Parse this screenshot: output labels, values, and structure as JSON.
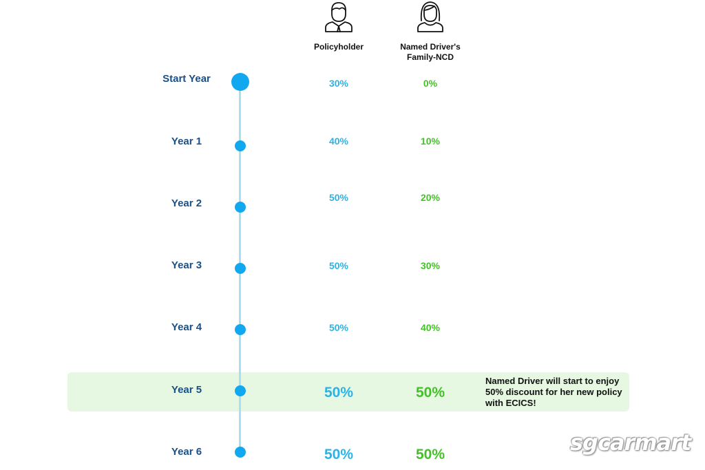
{
  "columns": {
    "policyholder": {
      "label": "Policyholder",
      "icon": "man-avatar-icon"
    },
    "named_driver": {
      "label_line1": "Named Driver's",
      "label_line2": "Family-NCD",
      "icon": "woman-avatar-icon"
    }
  },
  "rows": [
    {
      "year": "Start Year",
      "policyholder": "30%",
      "named_driver": "0%"
    },
    {
      "year": "Year 1",
      "policyholder": "40%",
      "named_driver": "10%"
    },
    {
      "year": "Year 2",
      "policyholder": "50%",
      "named_driver": "20%"
    },
    {
      "year": "Year 3",
      "policyholder": "50%",
      "named_driver": "30%"
    },
    {
      "year": "Year 4",
      "policyholder": "50%",
      "named_driver": "40%"
    },
    {
      "year": "Year 5",
      "policyholder": "50%",
      "named_driver": "50%"
    },
    {
      "year": "Year 6",
      "policyholder": "50%",
      "named_driver": "50%"
    }
  ],
  "highlight_note": "Named Driver will start to enjoy 50% discount for her new policy with ECICS!",
  "watermark": "sgcarmart",
  "colors": {
    "year_label": "#1a4f88",
    "policyholder": "#2cb3e6",
    "named_driver": "#44c128",
    "dot": "#12a8f0",
    "line": "#a9dff2",
    "highlight_bg": "#e6f7e2"
  }
}
